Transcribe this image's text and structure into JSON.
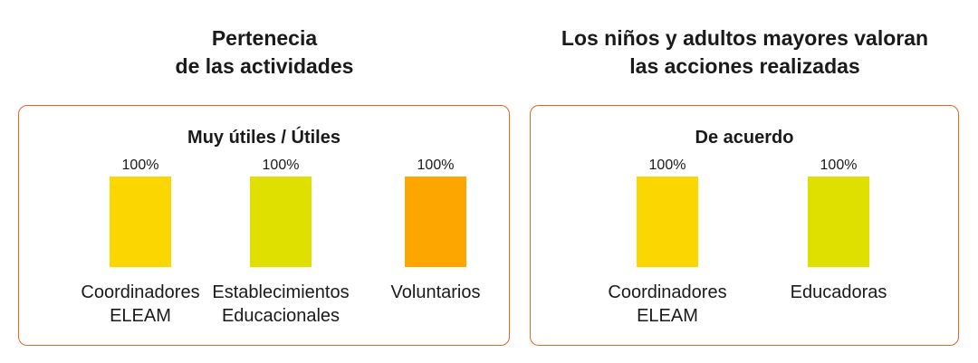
{
  "chart_data": [
    {
      "type": "bar",
      "title": [
        "Pertenecia",
        "de las actividades"
      ],
      "subtitle": "Muy útiles / Útiles",
      "categories": [
        [
          "Coordinadores",
          "ELEAM"
        ],
        [
          "Establecimientos",
          "Educacionales"
        ],
        [
          "Voluntarios"
        ]
      ],
      "values": [
        100,
        100,
        100
      ],
      "value_labels": [
        "100%",
        "100%",
        "100%"
      ],
      "colors": [
        "#fcd600",
        "#dfe000",
        "#fda600"
      ],
      "ylim": [
        0,
        100
      ]
    },
    {
      "type": "bar",
      "title": [
        "Los niños y adultos mayores valoran",
        "las acciones realizadas"
      ],
      "subtitle": "De acuerdo",
      "categories": [
        [
          "Coordinadores",
          "ELEAM"
        ],
        [
          "Educadoras"
        ]
      ],
      "values": [
        100,
        100
      ],
      "value_labels": [
        "100%",
        "100%"
      ],
      "colors": [
        "#fcd600",
        "#dfe000"
      ],
      "ylim": [
        0,
        100
      ]
    }
  ],
  "panel_border_color": "#e0662c"
}
